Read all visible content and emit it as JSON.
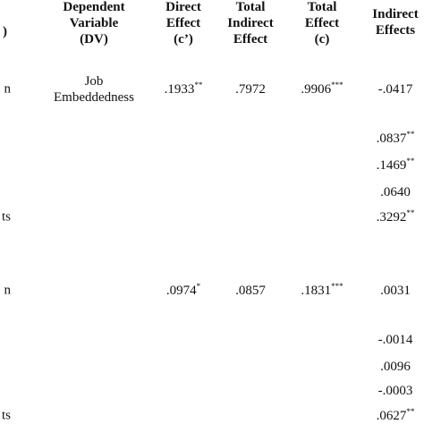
{
  "header": {
    "stub": ")",
    "dv": [
      "Dependent",
      "Variable",
      "(DV)"
    ],
    "direct": [
      "Direct",
      "Effect",
      "(c’)"
    ],
    "total_indirect": [
      "Total",
      "Indirect",
      "Effect"
    ],
    "total": [
      "Total",
      "Effect",
      "(c)"
    ],
    "indirect": [
      "Indirect",
      "Effects"
    ]
  },
  "rows": [
    {
      "stub": "n",
      "dv": [
        "Job",
        "Embeddedness"
      ],
      "direct": {
        "text": ".1933",
        "sup": "**"
      },
      "total_indirect": {
        "text": ".7972"
      },
      "total": {
        "text": ".9906",
        "sup": "***"
      },
      "indirect": {
        "text": "-.0417"
      }
    },
    {
      "indirect": {
        "text": ".0837",
        "sup": "**"
      }
    },
    {
      "indirect": {
        "text": ".1469",
        "sup": "**"
      }
    },
    {
      "indirect": {
        "text": ".0640"
      }
    },
    {
      "stub": "ts",
      "indirect": {
        "text": ".3292",
        "sup": "**"
      }
    },
    {
      "stub": "n",
      "direct": {
        "text": ".0974",
        "sup": "*"
      },
      "total_indirect": {
        "text": ".0857"
      },
      "total": {
        "text": ".1831",
        "sup": "***"
      },
      "indirect": {
        "text": ".0031"
      }
    },
    {
      "indirect": {
        "text": "-.0014"
      }
    },
    {
      "indirect": {
        "text": ".0096"
      }
    },
    {
      "indirect": {
        "text": "-.0003"
      }
    },
    {
      "stub": "ts",
      "indirect": {
        "text": ".0627",
        "sup": "**"
      }
    }
  ]
}
